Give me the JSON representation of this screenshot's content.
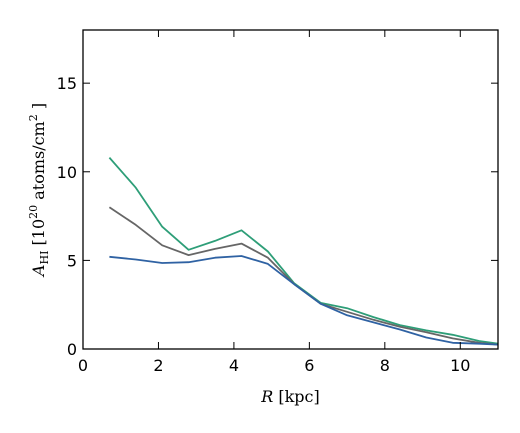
{
  "chart_data": {
    "type": "line",
    "xlabel": {
      "symbol": "R",
      "rest": " [kpc]"
    },
    "ylabel": {
      "symbol": "A",
      "sub": "HI",
      "mid": " [10",
      "sup1": "20",
      "mid2": " atoms/cm",
      "sup2": "2",
      "end": " ]"
    },
    "xlim": [
      0,
      11
    ],
    "ylim": [
      0,
      18
    ],
    "xticks": [
      0,
      2,
      4,
      6,
      8,
      10
    ],
    "yticks": [
      0,
      5,
      10,
      15
    ],
    "grid": false,
    "legend": "none",
    "x": [
      0.7,
      1.4,
      2.1,
      2.8,
      3.5,
      4.2,
      4.9,
      5.6,
      6.3,
      7.0,
      7.7,
      8.4,
      9.1,
      9.8,
      10.5,
      11.0
    ],
    "series": [
      {
        "color": "#2e9e78",
        "values": [
          10.8,
          9.1,
          6.9,
          5.6,
          6.1,
          6.7,
          5.5,
          3.7,
          2.6,
          2.3,
          1.8,
          1.35,
          1.05,
          0.8,
          0.45,
          0.3
        ]
      },
      {
        "color": "#666666",
        "values": [
          8.0,
          7.0,
          5.85,
          5.3,
          5.65,
          5.95,
          5.15,
          3.65,
          2.55,
          2.1,
          1.65,
          1.25,
          0.95,
          0.6,
          0.35,
          0.25
        ]
      },
      {
        "color": "#2f62a3",
        "values": [
          5.2,
          5.05,
          4.85,
          4.9,
          5.15,
          5.25,
          4.8,
          3.65,
          2.55,
          1.9,
          1.5,
          1.1,
          0.65,
          0.35,
          0.3,
          0.25
        ]
      }
    ]
  }
}
